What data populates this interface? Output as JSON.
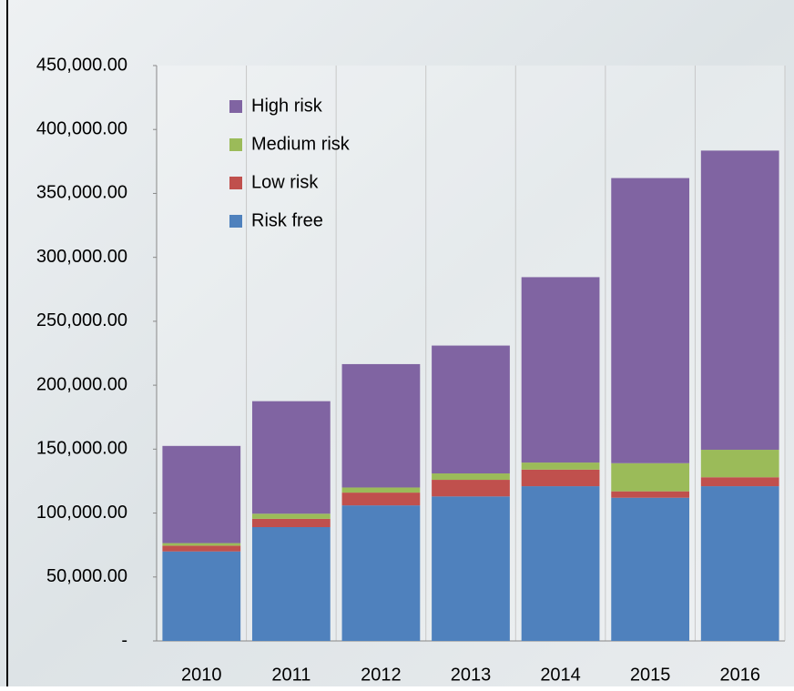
{
  "chart_data": {
    "type": "stacked-bar",
    "categories": [
      "2010",
      "2011",
      "2012",
      "2013",
      "2014",
      "2015",
      "2016"
    ],
    "series": [
      {
        "name": "Risk free",
        "color": "#4f81bd",
        "values": [
          70000,
          89000,
          106000,
          113000,
          121000,
          112000,
          121000
        ]
      },
      {
        "name": "Low risk",
        "color": "#c0504d",
        "values": [
          4500,
          6500,
          10000,
          13000,
          13000,
          5000,
          7000
        ]
      },
      {
        "name": "Medium risk",
        "color": "#9bbb59",
        "values": [
          2000,
          4000,
          4000,
          5000,
          5500,
          22000,
          21500
        ]
      },
      {
        "name": "High risk",
        "color": "#8064a2",
        "values": [
          76000,
          88000,
          96500,
          100000,
          145000,
          223000,
          234000
        ]
      }
    ],
    "ylim": [
      0,
      450000
    ],
    "yticks": [
      {
        "value": 0,
        "label": "-"
      },
      {
        "value": 50000,
        "label": "50,000.00"
      },
      {
        "value": 100000,
        "label": "100,000.00"
      },
      {
        "value": 150000,
        "label": "150,000.00"
      },
      {
        "value": 200000,
        "label": "200,000.00"
      },
      {
        "value": 250000,
        "label": "250,000.00"
      },
      {
        "value": 300000,
        "label": "300,000.00"
      },
      {
        "value": 350000,
        "label": "350,000.00"
      },
      {
        "value": 400000,
        "label": "400,000.00"
      },
      {
        "value": 450000,
        "label": "450,000.00"
      }
    ],
    "grid": true,
    "legend": "upper left"
  }
}
